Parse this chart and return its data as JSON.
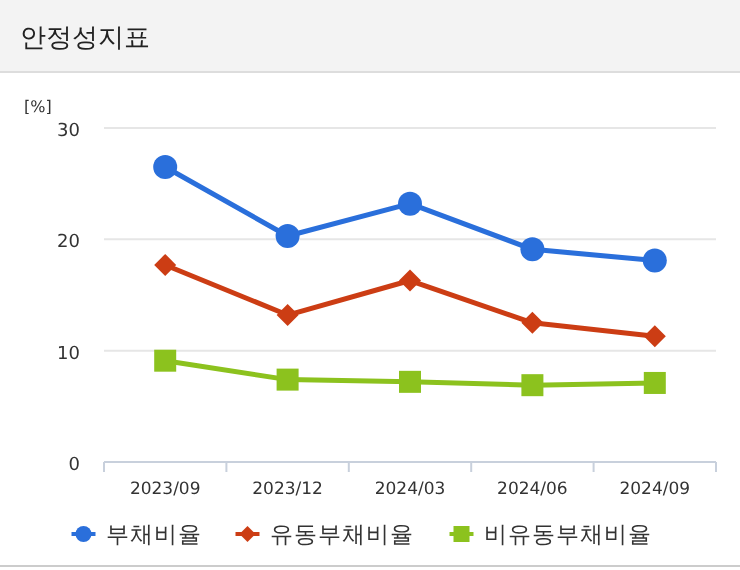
{
  "chart_data": {
    "type": "line",
    "title": "안정성지표",
    "ylabel": "[%]",
    "categories": [
      "2023/09",
      "2023/12",
      "2024/03",
      "2024/06",
      "2024/09"
    ],
    "series": [
      {
        "name": "부채비율",
        "color": "#2a6fdb",
        "marker": "circle",
        "values": [
          26.5,
          20.3,
          23.2,
          19.1,
          18.1
        ]
      },
      {
        "name": "유동부채비율",
        "color": "#cc3d14",
        "marker": "diamond",
        "values": [
          17.7,
          13.2,
          16.3,
          12.5,
          11.3
        ]
      },
      {
        "name": "비유동부채비율",
        "color": "#8cc21e",
        "marker": "square",
        "values": [
          9.1,
          7.4,
          7.2,
          6.9,
          7.1
        ]
      }
    ],
    "ylim": [
      0,
      30
    ],
    "yticks": [
      0,
      10,
      20,
      30
    ],
    "grid": "y",
    "legend": "bottom",
    "line_style": "solid"
  }
}
